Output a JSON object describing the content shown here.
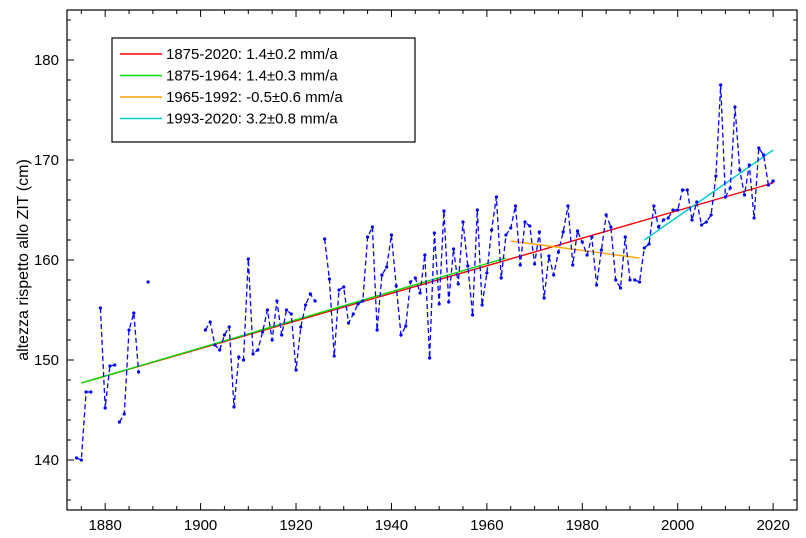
{
  "chart_data": {
    "type": "line",
    "title": "",
    "xlabel": "",
    "ylabel": "altezza rispetto allo ZIT (cm)",
    "xlim": [
      1872,
      2025
    ],
    "ylim": [
      135,
      185
    ],
    "xticks": [
      1880,
      1900,
      1920,
      1940,
      1960,
      1980,
      2000,
      2020
    ],
    "yticks": [
      140,
      150,
      160,
      170,
      180
    ],
    "grid": false,
    "legend_position": "top-left",
    "series": [
      {
        "style": "dashed-with-points",
        "color": "#0000ff",
        "segments": [
          {
            "x": [
              1874,
              1875,
              1876,
              1877
            ],
            "y": [
              140.2,
              140.0,
              146.8,
              146.8
            ]
          },
          {
            "x": [
              1879,
              1880,
              1881,
              1882
            ],
            "y": [
              155.2,
              145.2,
              149.4,
              149.5
            ]
          },
          {
            "x": [
              1883,
              1884,
              1885,
              1886,
              1887
            ],
            "y": [
              143.8,
              144.6,
              153.0,
              154.7,
              148.8
            ]
          },
          {
            "x": [
              1889
            ],
            "y": [
              157.8
            ]
          },
          {
            "x": [
              1901,
              1902,
              1903,
              1904,
              1905,
              1906,
              1907,
              1908,
              1909,
              1910,
              1911,
              1912,
              1913,
              1914,
              1915,
              1916,
              1917,
              1918,
              1919,
              1920,
              1921,
              1922,
              1923,
              1924
            ],
            "y": [
              153.0,
              153.8,
              151.5,
              151.0,
              152.5,
              153.3,
              145.3,
              150.3,
              150.0,
              160.1,
              150.6,
              151.0,
              152.8,
              155.0,
              152.0,
              155.9,
              152.5,
              155.0,
              154.6,
              149.0,
              153.3,
              155.5,
              156.6,
              155.9
            ]
          },
          {
            "x": [
              1926,
              1927,
              1928,
              1929,
              1930,
              1931,
              1932,
              1933,
              1934,
              1935,
              1936,
              1937,
              1938,
              1939,
              1940,
              1941,
              1942,
              1943,
              1944,
              1945,
              1946,
              1947,
              1948,
              1949,
              1950,
              1951,
              1952,
              1953,
              1954,
              1955,
              1956,
              1957,
              1958,
              1959,
              1960,
              1961,
              1962,
              1963,
              1964,
              1965,
              1966,
              1967,
              1968,
              1969,
              1970,
              1971,
              1972,
              1973,
              1974,
              1975,
              1976,
              1977,
              1978,
              1979,
              1980,
              1981,
              1982,
              1983,
              1984,
              1985,
              1986,
              1987,
              1988,
              1989,
              1990,
              1991,
              1992,
              1993,
              1994,
              1995,
              1996,
              1997,
              1998,
              1999,
              2000,
              2001,
              2002,
              2003,
              2004,
              2005,
              2006,
              2007,
              2008,
              2009,
              2010,
              2011,
              2012,
              2013,
              2014,
              2015,
              2016,
              2017,
              2018,
              2019,
              2020
            ],
            "y": [
              162.1,
              158.1,
              150.4,
              157.0,
              157.3,
              153.7,
              154.6,
              155.6,
              155.9,
              162.3,
              163.3,
              153.0,
              158.5,
              159.3,
              162.5,
              157.4,
              152.5,
              153.4,
              157.8,
              158.2,
              156.7,
              160.5,
              150.2,
              162.7,
              155.6,
              164.9,
              155.8,
              161.1,
              157.6,
              163.8,
              159.4,
              154.5,
              165.0,
              155.5,
              158.7,
              163.0,
              166.3,
              158.2,
              162.5,
              163.2,
              165.4,
              159.5,
              163.8,
              163.4,
              159.6,
              162.8,
              156.2,
              160.4,
              158.5,
              160.8,
              162.8,
              165.4,
              159.5,
              162.9,
              161.8,
              160.5,
              162.3,
              157.5,
              161.0,
              164.5,
              163.3,
              158.0,
              157.2,
              162.3,
              158.0,
              158.0,
              157.8,
              161.2,
              161.6,
              165.4,
              163.3,
              164.0,
              164.2,
              165.0,
              165.0,
              167.0,
              167.0,
              164.0,
              165.8,
              163.5,
              163.8,
              164.5,
              168.4,
              177.5,
              166.3,
              167.2,
              175.3,
              169.0,
              166.5,
              169.5,
              164.2,
              171.2,
              170.5,
              167.5,
              167.9
            ]
          }
        ]
      },
      {
        "name": "1875-2020:  1.4±0.2 mm/a",
        "color": "#ff0000",
        "x": [
          1875,
          2020
        ],
        "y": [
          147.7,
          167.7
        ]
      },
      {
        "name": "1875-1964:  1.4±0.3 mm/a",
        "color": "#00dd00",
        "x": [
          1875,
          1964
        ],
        "y": [
          147.7,
          160.2
        ]
      },
      {
        "name": "1965-1992: -0.5±0.6 mm/a",
        "color": "#ffa500",
        "x": [
          1965,
          1992
        ],
        "y": [
          161.9,
          160.2
        ]
      },
      {
        "name": "1993-2020:  3.2±0.8 mm/a",
        "color": "#00cccc",
        "x": [
          1993,
          2020
        ],
        "y": [
          162.0,
          171.0
        ]
      }
    ]
  }
}
